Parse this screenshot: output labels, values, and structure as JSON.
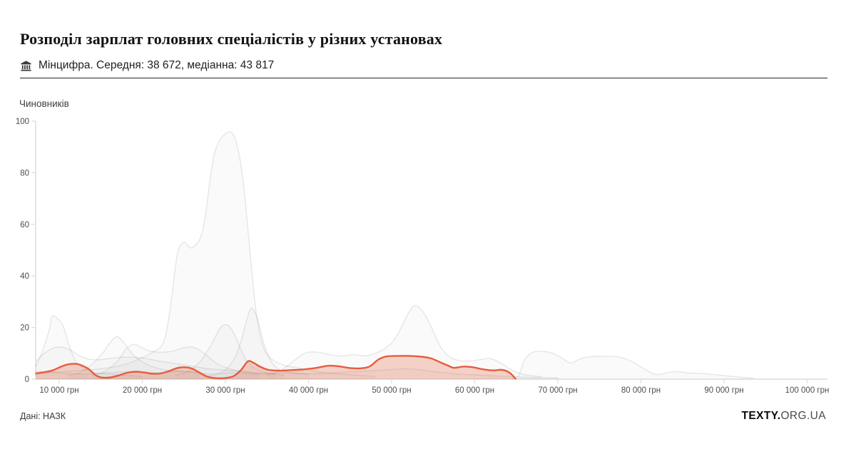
{
  "header": {
    "title": "Розподіл зарплат головних спеціалістів у різних установах",
    "org_icon": "bank-icon",
    "subtitle": "Мінцифра. Середня: 38 672, медіанна: 43 817"
  },
  "footer": {
    "source": "Дані: НАЗК",
    "brand": {
      "bold": "TEXTY.",
      "rest": "ORG.UA"
    }
  },
  "chart_data": {
    "type": "area",
    "title": "Розподіл зарплат головних спеціалістів у різних установах",
    "ylabel": "Чиновників",
    "x_unit": "грн",
    "ylim": [
      0,
      100
    ],
    "xlim_uah": [
      7200,
      102400
    ],
    "grid": false,
    "legend": "none",
    "axis_color": "#dcdcdc",
    "y_ticks": [
      0,
      20,
      40,
      60,
      80,
      100
    ],
    "x_ticks": [
      {
        "value": 10000,
        "label": "10 000 грн"
      },
      {
        "value": 20000,
        "label": "20 000 грн"
      },
      {
        "value": 30000,
        "label": "30 000 грн"
      },
      {
        "value": 40000,
        "label": "40 000 грн"
      },
      {
        "value": 50000,
        "label": "50 000 грн"
      },
      {
        "value": 60000,
        "label": "60 000 грн"
      },
      {
        "value": 70000,
        "label": "70 000 грн"
      },
      {
        "value": 80000,
        "label": "80 000 грн"
      },
      {
        "value": 90000,
        "label": "90 000 грн"
      },
      {
        "value": 100000,
        "label": "100 000 грн"
      }
    ],
    "background_series_style": {
      "stroke": "rgba(95,95,95,0.15)",
      "fill": "rgba(130,130,130,0.045)",
      "stroke_width": 1.3
    },
    "highlight_series": {
      "name": "Мінцифра",
      "mean": 38672,
      "median": 43817,
      "color": "#e4572e",
      "stroke_color": "#e85c3e",
      "fill_opacity": 0.25,
      "stroke_width": 2.4,
      "points": [
        [
          7200,
          2.2
        ],
        [
          8200,
          2.7
        ],
        [
          9200,
          3.4
        ],
        [
          10200,
          4.8
        ],
        [
          11000,
          5.7
        ],
        [
          12000,
          5.9
        ],
        [
          12800,
          5.2
        ],
        [
          13600,
          3.8
        ],
        [
          14400,
          1.5
        ],
        [
          15200,
          0.6
        ],
        [
          16200,
          0.7
        ],
        [
          17200,
          1.5
        ],
        [
          18200,
          2.5
        ],
        [
          19200,
          2.9
        ],
        [
          20200,
          2.6
        ],
        [
          21200,
          2.1
        ],
        [
          22200,
          2.2
        ],
        [
          23200,
          3.1
        ],
        [
          24200,
          4.3
        ],
        [
          25100,
          4.6
        ],
        [
          26000,
          4.1
        ],
        [
          26900,
          2.5
        ],
        [
          27800,
          1.0
        ],
        [
          28800,
          0.4
        ],
        [
          29900,
          0.4
        ],
        [
          31000,
          1.2
        ],
        [
          31900,
          3.6
        ],
        [
          32700,
          6.9
        ],
        [
          33400,
          6.3
        ],
        [
          34200,
          4.8
        ],
        [
          35200,
          3.6
        ],
        [
          36500,
          3.3
        ],
        [
          38000,
          3.5
        ],
        [
          39500,
          3.8
        ],
        [
          41000,
          4.4
        ],
        [
          42400,
          5.2
        ],
        [
          43600,
          5.0
        ],
        [
          45000,
          4.3
        ],
        [
          46300,
          4.2
        ],
        [
          47400,
          5.0
        ],
        [
          48400,
          7.6
        ],
        [
          49400,
          8.8
        ],
        [
          50800,
          9.0
        ],
        [
          52200,
          9.0
        ],
        [
          53600,
          8.7
        ],
        [
          54800,
          8.0
        ],
        [
          55800,
          6.6
        ],
        [
          56900,
          5.1
        ],
        [
          57500,
          4.4
        ],
        [
          58700,
          4.9
        ],
        [
          59800,
          4.6
        ],
        [
          61000,
          3.8
        ],
        [
          62200,
          3.4
        ],
        [
          63300,
          3.6
        ],
        [
          64200,
          2.5
        ],
        [
          64900,
          0.2
        ]
      ]
    },
    "background_series": [
      {
        "id": "gray-1",
        "points": [
          [
            7200,
            2
          ],
          [
            9000,
            2.5
          ],
          [
            11000,
            3
          ],
          [
            13000,
            3.5
          ],
          [
            15000,
            4
          ],
          [
            17000,
            5
          ],
          [
            19000,
            7
          ],
          [
            21000,
            10
          ],
          [
            22500,
            14
          ],
          [
            23300,
            26
          ],
          [
            24200,
            48
          ],
          [
            25000,
            53
          ],
          [
            26000,
            51
          ],
          [
            27300,
            58
          ],
          [
            28400,
            83
          ],
          [
            29200,
            92
          ],
          [
            30200,
            95.5
          ],
          [
            30900,
            95
          ],
          [
            31600,
            88
          ],
          [
            32300,
            72
          ],
          [
            33000,
            48
          ],
          [
            33700,
            26
          ],
          [
            34500,
            13
          ],
          [
            35500,
            8
          ],
          [
            37000,
            5.5
          ],
          [
            38500,
            4.5
          ],
          [
            40000,
            3.5
          ],
          [
            42000,
            2.5
          ],
          [
            44000,
            2
          ],
          [
            46000,
            1.5
          ],
          [
            48000,
            1
          ]
        ]
      },
      {
        "id": "gray-2",
        "points": [
          [
            7200,
            5
          ],
          [
            8000,
            11
          ],
          [
            8800,
            19
          ],
          [
            9200,
            24.5
          ],
          [
            10400,
            21
          ],
          [
            11200,
            13
          ],
          [
            12000,
            7
          ],
          [
            13000,
            4
          ],
          [
            14200,
            2.5
          ],
          [
            16000,
            2
          ],
          [
            18000,
            1.5
          ],
          [
            20000,
            1
          ]
        ]
      },
      {
        "id": "gray-3",
        "points": [
          [
            7200,
            7
          ],
          [
            8200,
            10
          ],
          [
            9200,
            12
          ],
          [
            10200,
            12.5
          ],
          [
            11200,
            11.5
          ],
          [
            12200,
            9.5
          ],
          [
            13200,
            8
          ],
          [
            14500,
            7.5
          ],
          [
            16000,
            8
          ],
          [
            17500,
            8.5
          ],
          [
            19000,
            8.5
          ],
          [
            20500,
            8
          ],
          [
            22000,
            7
          ],
          [
            24000,
            6
          ],
          [
            26000,
            5
          ],
          [
            28000,
            4
          ],
          [
            30000,
            3.5
          ],
          [
            32000,
            3
          ],
          [
            34000,
            2.5
          ],
          [
            36000,
            2
          ]
        ]
      },
      {
        "id": "gray-4",
        "points": [
          [
            11000,
            1.5
          ],
          [
            12500,
            2.5
          ],
          [
            14000,
            6
          ],
          [
            15200,
            10
          ],
          [
            16100,
            14
          ],
          [
            16900,
            16.5
          ],
          [
            17700,
            14.5
          ],
          [
            18500,
            11
          ],
          [
            19400,
            8
          ],
          [
            20400,
            6
          ],
          [
            21500,
            4.5
          ],
          [
            23000,
            3.5
          ],
          [
            25000,
            3
          ],
          [
            27000,
            2.5
          ]
        ]
      },
      {
        "id": "gray-5",
        "points": [
          [
            14000,
            1.5
          ],
          [
            15500,
            3
          ],
          [
            17000,
            7
          ],
          [
            18000,
            11.5
          ],
          [
            18900,
            13.5
          ],
          [
            19800,
            12.5
          ],
          [
            20800,
            11
          ],
          [
            21800,
            10.5
          ],
          [
            22800,
            10.5
          ],
          [
            23800,
            11
          ],
          [
            24800,
            12
          ],
          [
            25800,
            12.5
          ],
          [
            26800,
            11.5
          ],
          [
            27800,
            9
          ],
          [
            29000,
            6
          ],
          [
            30500,
            4
          ],
          [
            32000,
            3
          ],
          [
            34000,
            2
          ]
        ]
      },
      {
        "id": "gray-6",
        "points": [
          [
            24000,
            1.5
          ],
          [
            25500,
            3
          ],
          [
            27000,
            7
          ],
          [
            28400,
            14
          ],
          [
            29400,
            20
          ],
          [
            30200,
            21
          ],
          [
            31000,
            18
          ],
          [
            31800,
            12
          ],
          [
            32600,
            7
          ],
          [
            33600,
            4
          ],
          [
            35000,
            2.5
          ],
          [
            37000,
            1.5
          ]
        ]
      },
      {
        "id": "gray-7",
        "points": [
          [
            27500,
            1
          ],
          [
            29000,
            2
          ],
          [
            30300,
            4.5
          ],
          [
            31500,
            11
          ],
          [
            32400,
            21
          ],
          [
            33100,
            27.5
          ],
          [
            33900,
            23
          ],
          [
            34700,
            13
          ],
          [
            35600,
            6.5
          ],
          [
            36600,
            3.5
          ],
          [
            38000,
            2.5
          ],
          [
            40000,
            2
          ]
        ]
      },
      {
        "id": "gray-8",
        "points": [
          [
            35000,
            1.5
          ],
          [
            36500,
            3
          ],
          [
            38000,
            6.5
          ],
          [
            39500,
            10
          ],
          [
            41000,
            10.5
          ],
          [
            42500,
            9.5
          ],
          [
            44000,
            9
          ],
          [
            45500,
            9.5
          ],
          [
            46800,
            9
          ],
          [
            48000,
            10
          ],
          [
            49000,
            11.5
          ],
          [
            50000,
            14
          ],
          [
            51000,
            19
          ],
          [
            52000,
            25.5
          ],
          [
            52800,
            28.5
          ],
          [
            53800,
            26
          ],
          [
            54800,
            20
          ],
          [
            55800,
            13
          ],
          [
            56800,
            9
          ],
          [
            57800,
            7.5
          ],
          [
            59000,
            7
          ],
          [
            60500,
            7.5
          ],
          [
            61800,
            8
          ],
          [
            63000,
            6.5
          ],
          [
            64200,
            4
          ],
          [
            65200,
            2.5
          ],
          [
            66500,
            1.5
          ],
          [
            68000,
            1
          ]
        ]
      },
      {
        "id": "gray-9",
        "points": [
          [
            64500,
            0.3
          ],
          [
            65300,
            1.5
          ],
          [
            66000,
            7.5
          ],
          [
            66900,
            10.3
          ],
          [
            68000,
            10.8
          ],
          [
            69200,
            10.2
          ],
          [
            70300,
            8.6
          ],
          [
            71500,
            6.3
          ],
          [
            72800,
            8
          ],
          [
            74200,
            8.8
          ],
          [
            75800,
            8.8
          ],
          [
            77300,
            8.6
          ],
          [
            78800,
            7
          ],
          [
            80300,
            4.2
          ],
          [
            81800,
            1.8
          ],
          [
            83300,
            2.6
          ],
          [
            84300,
            2.9
          ],
          [
            85800,
            2.4
          ],
          [
            87300,
            2.2
          ],
          [
            89000,
            1.7
          ],
          [
            90500,
            1.2
          ],
          [
            92000,
            0.8
          ],
          [
            93500,
            0.4
          ]
        ]
      },
      {
        "id": "gray-10",
        "points": [
          [
            7200,
            3
          ],
          [
            10000,
            2.5
          ],
          [
            13000,
            2
          ],
          [
            16000,
            2.5
          ],
          [
            19000,
            3
          ],
          [
            22000,
            2.5
          ],
          [
            25000,
            3
          ],
          [
            28000,
            2
          ],
          [
            31000,
            2.5
          ],
          [
            34000,
            2
          ],
          [
            37000,
            2.5
          ],
          [
            40000,
            2
          ],
          [
            43000,
            2.5
          ],
          [
            46000,
            3
          ],
          [
            49000,
            3.5
          ],
          [
            52000,
            4
          ],
          [
            55000,
            3
          ],
          [
            58000,
            2
          ],
          [
            61000,
            1.5
          ],
          [
            64000,
            1
          ],
          [
            67000,
            0.7
          ],
          [
            70000,
            0.5
          ]
        ]
      }
    ]
  }
}
